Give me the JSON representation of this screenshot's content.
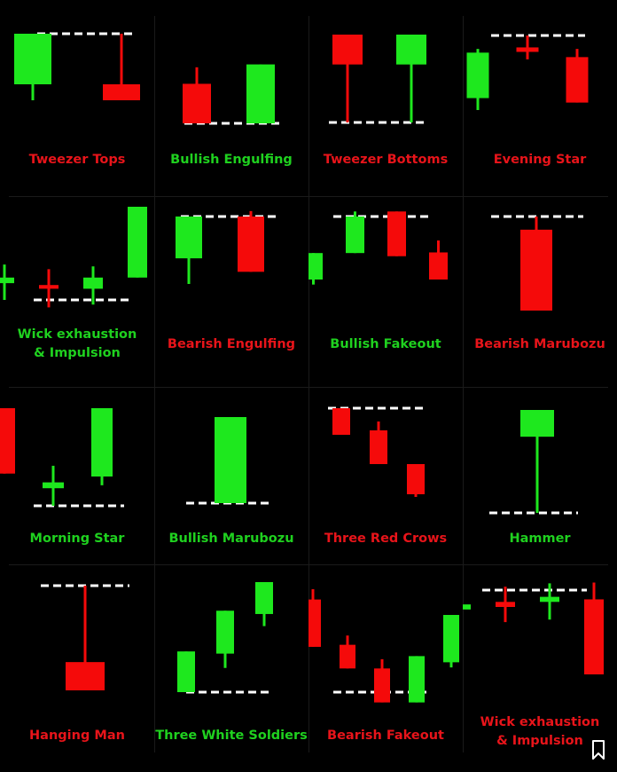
{
  "colors": {
    "bull": "#1ee81e",
    "bear": "#f50a0a",
    "bull_text": "#1fd11f",
    "bear_text": "#e8141a",
    "level": "#ffffff",
    "background": "#000000"
  },
  "patterns": [
    {
      "name": "Tweezer Tops",
      "label_color": "bear",
      "level": {
        "side": "top",
        "value": 100
      },
      "candles": [
        {
          "dir": "bull",
          "open": 100,
          "close": 24,
          "high": 100,
          "low": 0
        },
        {
          "dir": "bear",
          "open": 24,
          "close": 0,
          "high": 100,
          "low": 0
        }
      ]
    },
    {
      "name": "Bullish Engulfing",
      "label_color": "bull",
      "level": {
        "side": "bottom",
        "value": 0
      },
      "candles": [
        {
          "dir": "bear",
          "open": 55,
          "close": 0,
          "high": 78,
          "low": 0
        },
        {
          "dir": "bull",
          "open": 0,
          "close": 82,
          "high": 82,
          "low": 0
        }
      ]
    },
    {
      "name": "Tweezer Bottoms",
      "label_color": "bear",
      "level": {
        "side": "bottom",
        "value": 0
      },
      "candles": [
        {
          "dir": "bear",
          "open": 100,
          "close": 66,
          "high": 100,
          "low": 0
        },
        {
          "dir": "bull",
          "open": 66,
          "close": 100,
          "high": 100,
          "low": 0
        }
      ]
    },
    {
      "name": "Evening Star",
      "label_color": "bear",
      "level": {
        "side": "top",
        "value": 100
      },
      "candles": [
        {
          "dir": "bull",
          "open": 16,
          "close": 77,
          "high": 82,
          "low": 0
        },
        {
          "dir": "bear",
          "open": 84,
          "close": 78,
          "high": 100,
          "low": 68
        },
        {
          "dir": "bear",
          "open": 71,
          "close": 10,
          "high": 82,
          "low": 10
        }
      ]
    },
    {
      "name": "Wick exhaustion\n& Impulsion",
      "label_color": "bull",
      "level": {
        "side": "bottom",
        "value": 0
      },
      "candles": [
        {
          "dir": "bull",
          "open": 18,
          "close": 24,
          "high": 38,
          "low": 0
        },
        {
          "dir": "bear",
          "open": 16,
          "close": 12,
          "high": 33,
          "low": -8
        },
        {
          "dir": "bull",
          "open": 12,
          "close": 24,
          "high": 36,
          "low": -5
        },
        {
          "dir": "bull",
          "open": 24,
          "close": 100,
          "high": 100,
          "low": 24
        }
      ]
    },
    {
      "name": "Bearish Engulfing",
      "label_color": "bear",
      "level": {
        "side": "top",
        "value": 100
      },
      "candles": [
        {
          "dir": "bull",
          "open": 38,
          "close": 100,
          "high": 100,
          "low": 0
        },
        {
          "dir": "bear",
          "open": 100,
          "close": 18,
          "high": 108,
          "low": 18
        }
      ]
    },
    {
      "name": "Bullish Fakeout",
      "label_color": "bull",
      "level": {
        "side": "top",
        "value": 100
      },
      "candles": [
        {
          "dir": "bull",
          "open": 0,
          "close": 42,
          "high": 42,
          "low": -8
        },
        {
          "dir": "bull",
          "open": 42,
          "close": 100,
          "high": 108,
          "low": 42
        },
        {
          "dir": "bear",
          "open": 108,
          "close": 37,
          "high": 108,
          "low": 37
        },
        {
          "dir": "bear",
          "open": 43,
          "close": 0,
          "high": 62,
          "low": 0
        }
      ]
    },
    {
      "name": "Bearish Marubozu",
      "label_color": "bear",
      "level": {
        "side": "top",
        "value": 100
      },
      "candles": [
        {
          "dir": "bear",
          "open": 86,
          "close": 0,
          "high": 100,
          "low": 0
        }
      ]
    },
    {
      "name": "Morning Star",
      "label_color": "bull",
      "level": {
        "side": "bottom",
        "value": 0
      },
      "candles": [
        {
          "dir": "bear",
          "open": 100,
          "close": 33,
          "high": 100,
          "low": 33
        },
        {
          "dir": "bull",
          "open": 18,
          "close": 24,
          "high": 41,
          "low": 0
        },
        {
          "dir": "bull",
          "open": 30,
          "close": 100,
          "high": 100,
          "low": 21
        }
      ]
    },
    {
      "name": "Bullish Marubozu",
      "label_color": "bull",
      "level": {
        "side": "bottom",
        "value": 0
      },
      "candles": [
        {
          "dir": "bull",
          "open": 0,
          "close": 100,
          "high": 100,
          "low": 0
        }
      ]
    },
    {
      "name": "Three Red Crows",
      "label_color": "bear",
      "level": {
        "side": "top",
        "value": 100
      },
      "candles": [
        {
          "dir": "bear",
          "open": 100,
          "close": 70,
          "high": 100,
          "low": 70
        },
        {
          "dir": "bear",
          "open": 75,
          "close": 37,
          "high": 85,
          "low": 37
        },
        {
          "dir": "bear",
          "open": 37,
          "close": 3,
          "high": 37,
          "low": 0
        }
      ]
    },
    {
      "name": "Hammer",
      "label_color": "bull",
      "level": {
        "side": "bottom",
        "value": 0
      },
      "candles": [
        {
          "dir": "bull",
          "open": 74,
          "close": 100,
          "high": 100,
          "low": 0
        }
      ]
    },
    {
      "name": "Hanging Man",
      "label_color": "bear",
      "level": {
        "side": "top",
        "value": 100
      },
      "candles": [
        {
          "dir": "bear",
          "open": 27,
          "close": 0,
          "high": 100,
          "low": 0
        }
      ]
    },
    {
      "name": "Three White Soldiers",
      "label_color": "bull",
      "level": {
        "side": "bottom",
        "value": 0
      },
      "candles": [
        {
          "dir": "bull",
          "open": 0,
          "close": 37,
          "high": 37,
          "low": 0
        },
        {
          "dir": "bull",
          "open": 35,
          "close": 74,
          "high": 74,
          "low": 22
        },
        {
          "dir": "bull",
          "open": 71,
          "close": 100,
          "high": 100,
          "low": 60
        }
      ]
    },
    {
      "name": "Bearish Fakeout",
      "label_color": "bear",
      "level": {
        "side": "bottom",
        "value": 0
      },
      "candles": [
        {
          "dir": "bear",
          "open": 90,
          "close": 44,
          "high": 100,
          "low": 44
        },
        {
          "dir": "bear",
          "open": 46,
          "close": 23,
          "high": 55,
          "low": 23
        },
        {
          "dir": "bear",
          "open": 23,
          "close": -10,
          "high": 32,
          "low": -10
        },
        {
          "dir": "bull",
          "open": -10,
          "close": 35,
          "high": 35,
          "low": -10
        },
        {
          "dir": "bull",
          "open": 29,
          "close": 75,
          "high": 75,
          "low": 24
        }
      ]
    },
    {
      "name": "Wick exhaustion\n& Impulsion",
      "label_color": "bear",
      "level": {
        "side": "top",
        "value": 100
      },
      "candles": [
        {
          "dir": "bull",
          "open": 77,
          "close": 83,
          "high": 101,
          "low": 59
        },
        {
          "dir": "bear",
          "open": 86,
          "close": 80,
          "high": 104,
          "low": 62
        },
        {
          "dir": "bull",
          "open": 86,
          "close": 92,
          "high": 108,
          "low": 65
        },
        {
          "dir": "bear",
          "open": 89,
          "close": 0,
          "high": 109,
          "low": 0
        }
      ]
    }
  ]
}
